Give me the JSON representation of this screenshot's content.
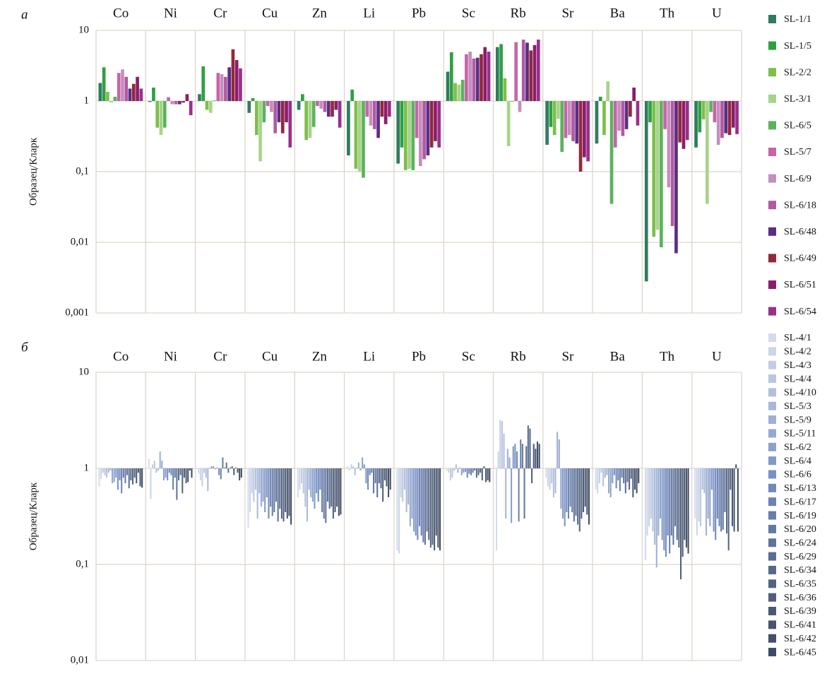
{
  "chart_data": [
    {
      "type": "bar",
      "panel_label": "а",
      "y_label": "Образец/Кларк",
      "log_scale": true,
      "grid": true,
      "legend": "right",
      "categories": [
        "Co",
        "Ni",
        "Cr",
        "Cu",
        "Zn",
        "Li",
        "Pb",
        "Sc",
        "Rb",
        "Sr",
        "Ba",
        "Th",
        "U"
      ],
      "ylim": [
        0.001,
        10
      ],
      "yticks": [
        10,
        1,
        {
          "value": 0.1,
          "label": "0,1"
        },
        {
          "value": 0.01,
          "label": "0,01"
        },
        {
          "value": 0.001,
          "label": "0,001"
        }
      ],
      "series": [
        {
          "name": "SL-1/1",
          "color": "#2e7d5e",
          "values": [
            1.8,
            0.97,
            1.25,
            0.68,
            0.75,
            0.17,
            0.13,
            2.6,
            5.8,
            0.24,
            0.25,
            0.0028,
            0.22
          ]
        },
        {
          "name": "SL-1/5",
          "color": "#2ea043",
          "values": [
            3.0,
            1.55,
            3.1,
            1.1,
            1.25,
            1.45,
            0.22,
            4.9,
            6.4,
            0.43,
            1.15,
            0.5,
            0.36
          ]
        },
        {
          "name": "SL-2/2",
          "color": "#7cbf4a",
          "values": [
            1.35,
            0.42,
            0.75,
            0.33,
            0.28,
            0.11,
            0.105,
            1.8,
            2.1,
            0.33,
            0.33,
            0.012,
            0.55
          ]
        },
        {
          "name": "SL-3/1",
          "color": "#a6d38a",
          "values": [
            0.95,
            0.33,
            0.68,
            0.14,
            0.3,
            0.1,
            0.11,
            1.7,
            0.23,
            0.56,
            1.9,
            0.015,
            0.035
          ]
        },
        {
          "name": "SL-6/5",
          "color": "#5bb35c",
          "values": [
            1.15,
            0.42,
            1.02,
            0.5,
            0.43,
            0.082,
            0.105,
            2.0,
            0.98,
            0.19,
            0.035,
            0.0085,
            0.7
          ]
        },
        {
          "name": "SL-5/7",
          "color": "#c764a8",
          "values": [
            2.5,
            1.13,
            2.5,
            0.85,
            0.85,
            0.6,
            0.3,
            4.6,
            6.8,
            0.3,
            0.22,
            0.4,
            0.5
          ]
        },
        {
          "name": "SL-6/9",
          "color": "#c38fbd",
          "values": [
            2.8,
            0.9,
            2.4,
            0.7,
            0.78,
            0.45,
            0.12,
            5.0,
            0.7,
            0.33,
            0.38,
            0.06,
            0.24
          ]
        },
        {
          "name": "SL-6/18",
          "color": "#b05aa3",
          "values": [
            2.2,
            0.9,
            2.2,
            0.35,
            0.7,
            0.4,
            0.15,
            4.0,
            7.4,
            0.27,
            0.32,
            0.017,
            0.3
          ]
        },
        {
          "name": "SL-6/48",
          "color": "#5b2d86",
          "values": [
            1.5,
            0.9,
            3.0,
            0.5,
            0.6,
            0.3,
            0.17,
            4.1,
            6.7,
            0.25,
            0.4,
            0.007,
            0.35
          ]
        },
        {
          "name": "SL-6/49",
          "color": "#93283a",
          "values": [
            1.75,
            0.95,
            5.4,
            0.35,
            0.6,
            0.6,
            0.22,
            4.6,
            5.2,
            0.1,
            0.6,
            0.26,
            0.33
          ]
        },
        {
          "name": "SL-6/51",
          "color": "#8a1d6e",
          "values": [
            2.2,
            1.25,
            3.8,
            0.5,
            0.75,
            0.47,
            0.27,
            5.8,
            6.2,
            0.16,
            1.55,
            0.21,
            0.42
          ]
        },
        {
          "name": "SL-6/54",
          "color": "#9b2f8a",
          "values": [
            1.5,
            0.63,
            2.9,
            0.22,
            0.42,
            0.6,
            0.22,
            5.0,
            7.4,
            0.14,
            0.45,
            0.28,
            0.34
          ]
        }
      ]
    },
    {
      "type": "bar",
      "panel_label": "б",
      "y_label": "Образец/Кларк",
      "log_scale": true,
      "grid": true,
      "legend": "right",
      "categories": [
        "Co",
        "Ni",
        "Cr",
        "Cu",
        "Zn",
        "Li",
        "Pb",
        "Sc",
        "Rb",
        "Sr",
        "Ba",
        "Th",
        "U"
      ],
      "ylim": [
        0.01,
        10
      ],
      "yticks": [
        10,
        1,
        {
          "value": 0.1,
          "label": "0,1"
        },
        {
          "value": 0.01,
          "label": "0,01"
        }
      ],
      "series": [
        {
          "name": "SL-4/1",
          "color": "#d3dbec",
          "values": [
            0.65,
            1.25,
            0.88,
            0.24,
            0.5,
            1.05,
            0.14,
            0.95,
            0.14,
            0.8,
            0.6,
            0.11,
            0.3
          ]
        },
        {
          "name": "SL-4/2",
          "color": "#cbd4e8",
          "values": [
            0.78,
            0.48,
            0.75,
            0.35,
            0.6,
            0.95,
            0.13,
            0.9,
            1.5,
            0.65,
            0.55,
            0.2,
            0.2
          ]
        },
        {
          "name": "SL-4/3",
          "color": "#c3cde4",
          "values": [
            0.9,
            1.1,
            0.65,
            0.55,
            0.7,
            1.1,
            0.5,
            0.75,
            3.2,
            0.6,
            0.7,
            0.25,
            0.28
          ]
        },
        {
          "name": "SL-4/4",
          "color": "#bbc6e0",
          "values": [
            0.85,
            1.2,
            0.9,
            0.45,
            0.55,
            1.05,
            0.45,
            0.8,
            3.1,
            0.7,
            0.9,
            0.3,
            0.25
          ]
        },
        {
          "name": "SL-4/10",
          "color": "#b3bfdc",
          "values": [
            0.8,
            0.9,
            0.8,
            0.6,
            0.4,
            0.85,
            0.6,
            0.95,
            2.3,
            0.5,
            0.65,
            0.22,
            0.6
          ]
        },
        {
          "name": "SL-5/3",
          "color": "#a9b8d8",
          "values": [
            0.9,
            0.95,
            0.58,
            0.3,
            0.28,
            1.02,
            0.35,
            1.1,
            0.3,
            0.55,
            0.8,
            0.16,
            0.55
          ]
        },
        {
          "name": "SL-5/9",
          "color": "#9fb0d4",
          "values": [
            0.95,
            1.5,
            1.02,
            0.55,
            0.6,
            1.15,
            0.42,
            0.9,
            1.6,
            2.4,
            0.85,
            0.093,
            0.2
          ]
        },
        {
          "name": "SL-5/11",
          "color": "#95a8d0",
          "values": [
            0.7,
            1.2,
            1.05,
            0.4,
            0.5,
            0.95,
            0.25,
            1.02,
            1.3,
            2.0,
            0.55,
            0.2,
            0.3
          ]
        },
        {
          "name": "SL-6/2",
          "color": "#8ba0cc",
          "values": [
            0.72,
            0.75,
            1.05,
            0.45,
            0.45,
            1.3,
            0.3,
            0.85,
            0.27,
            0.38,
            0.5,
            0.3,
            0.25
          ]
        },
        {
          "name": "SL-6/4",
          "color": "#8198c8",
          "values": [
            0.8,
            0.8,
            0.98,
            0.35,
            0.38,
            1.1,
            0.22,
            0.9,
            1.7,
            0.3,
            0.7,
            0.18,
            0.6
          ]
        },
        {
          "name": "SL-6/6",
          "color": "#7890c4",
          "values": [
            0.6,
            0.75,
            1.02,
            0.5,
            0.55,
            0.7,
            0.2,
            0.92,
            1.8,
            0.25,
            0.85,
            0.14,
            0.22
          ]
        },
        {
          "name": "SL-6/13",
          "color": "#7088bd",
          "values": [
            0.75,
            0.9,
            0.85,
            0.3,
            0.45,
            0.6,
            0.18,
            0.8,
            1.5,
            0.35,
            0.62,
            0.12,
            0.18
          ]
        },
        {
          "name": "SL-6/17",
          "color": "#6b82b5",
          "values": [
            0.55,
            0.85,
            0.77,
            0.4,
            0.6,
            0.85,
            0.25,
            0.88,
            0.28,
            0.3,
            0.75,
            0.2,
            0.3
          ]
        },
        {
          "name": "SL-6/19",
          "color": "#677dac",
          "values": [
            0.8,
            0.6,
            1.3,
            0.32,
            0.35,
            0.9,
            0.2,
            0.85,
            2.0,
            0.4,
            0.58,
            0.13,
            0.25
          ]
        },
        {
          "name": "SL-6/20",
          "color": "#6378a3",
          "values": [
            0.7,
            0.8,
            1.02,
            0.35,
            0.3,
            0.55,
            0.17,
            0.9,
            1.8,
            0.35,
            0.8,
            0.2,
            0.22
          ]
        },
        {
          "name": "SL-6/24",
          "color": "#5f739a",
          "values": [
            0.85,
            0.47,
            1.15,
            0.45,
            0.27,
            0.7,
            0.16,
            0.95,
            0.3,
            0.28,
            0.7,
            0.16,
            0.23
          ]
        },
        {
          "name": "SL-6/29",
          "color": "#5b6e92",
          "values": [
            0.62,
            0.75,
            0.9,
            0.28,
            0.45,
            0.5,
            0.22,
            0.8,
            1.7,
            0.32,
            0.55,
            0.25,
            0.35
          ]
        },
        {
          "name": "SL-6/34",
          "color": "#57698a",
          "values": [
            0.75,
            0.85,
            1.02,
            0.38,
            0.38,
            0.7,
            0.18,
            0.85,
            2.8,
            0.26,
            0.72,
            0.18,
            0.21
          ]
        },
        {
          "name": "SL-6/35",
          "color": "#536482",
          "values": [
            0.68,
            0.55,
            1.05,
            0.3,
            0.4,
            0.62,
            0.15,
            0.9,
            2.6,
            0.22,
            0.6,
            0.15,
            0.14
          ]
        },
        {
          "name": "SL-6/36",
          "color": "#4f5f7b",
          "values": [
            0.8,
            0.8,
            0.85,
            0.28,
            0.3,
            0.45,
            0.16,
            0.75,
            0.7,
            0.3,
            0.78,
            0.07,
            0.6
          ]
        },
        {
          "name": "SL-6/39",
          "color": "#4b5a74",
          "values": [
            0.7,
            0.7,
            1.02,
            0.35,
            0.35,
            0.75,
            0.14,
            1.05,
            1.8,
            0.35,
            0.5,
            0.12,
            0.25
          ]
        },
        {
          "name": "SL-6/41",
          "color": "#47556e",
          "values": [
            0.9,
            0.72,
            0.9,
            0.3,
            0.4,
            0.65,
            0.2,
            0.72,
            1.6,
            0.4,
            0.6,
            0.18,
            0.22
          ]
        },
        {
          "name": "SL-6/42",
          "color": "#435068",
          "values": [
            0.65,
            0.95,
            0.75,
            0.32,
            0.32,
            0.5,
            0.15,
            0.75,
            1.9,
            0.33,
            0.55,
            0.15,
            1.1
          ]
        },
        {
          "name": "SL-6/45",
          "color": "#3f4b62",
          "values": [
            0.63,
            0.8,
            0.8,
            0.26,
            0.33,
            0.6,
            0.14,
            0.72,
            1.8,
            0.26,
            0.7,
            0.13,
            0.22
          ]
        }
      ]
    }
  ]
}
